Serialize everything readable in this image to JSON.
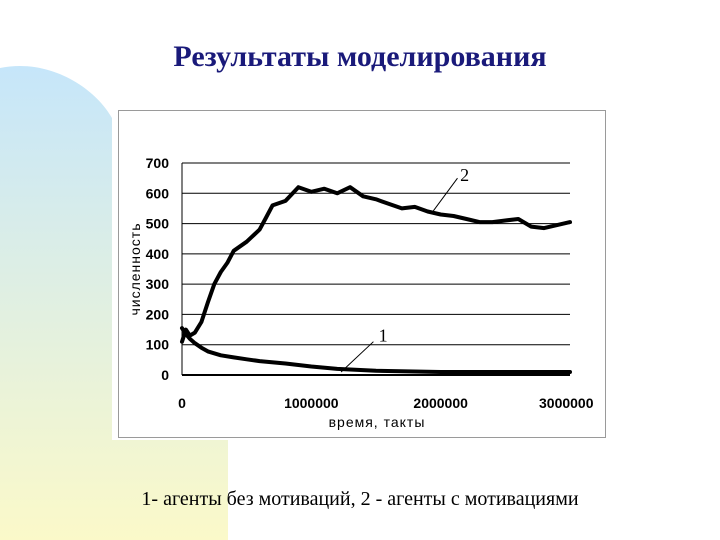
{
  "slide": {
    "title": "Результаты моделирования",
    "caption": "1- агенты без мотиваций, 2 - агенты с мотивациями"
  },
  "colors": {
    "title": "#1a1a7a",
    "decor_top": "#c6e6fa",
    "decor_bottom": "#fbf9c9",
    "series": "#000000"
  },
  "chart_data": {
    "type": "line",
    "xlabel": "время, такты",
    "ylabel": "численность",
    "xlim": [
      0,
      3000000
    ],
    "ylim": [
      0,
      700
    ],
    "x_ticks": [
      "0",
      "1000000",
      "2000000",
      "3000000"
    ],
    "y_ticks": [
      "0",
      "100",
      "200",
      "300",
      "400",
      "500",
      "600",
      "700"
    ],
    "grid": "horizontal",
    "annotations": [
      "1",
      "2"
    ],
    "series": [
      {
        "name": "1",
        "x": [
          0,
          30000,
          60000,
          100000,
          150000,
          200000,
          300000,
          400000,
          500000,
          600000,
          800000,
          1000000,
          1200000,
          1500000,
          2000000,
          2500000,
          3000000
        ],
        "y": [
          155,
          135,
          120,
          105,
          90,
          78,
          65,
          58,
          52,
          46,
          38,
          28,
          20,
          14,
          10,
          10,
          10
        ]
      },
      {
        "name": "2",
        "x": [
          0,
          30000,
          60000,
          100000,
          150000,
          200000,
          250000,
          300000,
          350000,
          400000,
          500000,
          600000,
          650000,
          700000,
          800000,
          900000,
          1000000,
          1100000,
          1200000,
          1300000,
          1400000,
          1500000,
          1600000,
          1700000,
          1800000,
          1900000,
          2000000,
          2100000,
          2200000,
          2300000,
          2400000,
          2500000,
          2600000,
          2700000,
          2800000,
          2900000,
          3000000
        ],
        "y": [
          110,
          150,
          130,
          140,
          175,
          240,
          300,
          340,
          370,
          410,
          440,
          480,
          520,
          560,
          575,
          620,
          605,
          615,
          600,
          620,
          590,
          580,
          565,
          550,
          555,
          540,
          530,
          525,
          515,
          505,
          505,
          510,
          515,
          490,
          485,
          495,
          505
        ]
      }
    ]
  }
}
